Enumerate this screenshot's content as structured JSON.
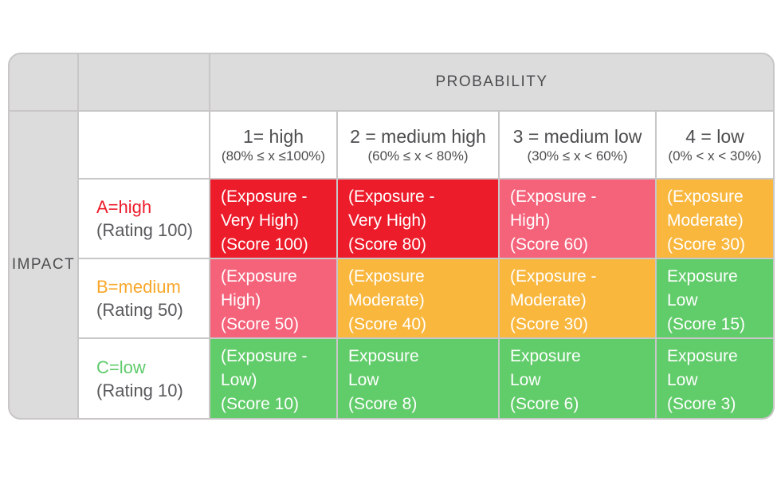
{
  "palette": {
    "red": "#ed1c2b",
    "pink": "#f5637b",
    "orange": "#f9b73e",
    "green": "#61cc6a",
    "header_gray": "#dddcdd",
    "grid_line": "#c8c6c7",
    "dark_text": "#4d4d4f",
    "rating_text": "#58595b",
    "label_red": "#ed1c2b",
    "label_orange": "#f9a72b",
    "label_green": "#5fcb6b",
    "cell_text": "#ffffff"
  },
  "matrix": {
    "probability_label": "PROBABILITY",
    "impact_label": "IMPACT",
    "columns": [
      {
        "label": "1= high",
        "range": "(80% ≤ x ≤100%)"
      },
      {
        "label": "2 = medium high",
        "range": "(60% ≤ x < 80%)"
      },
      {
        "label": "3 = medium low",
        "range": "(30% ≤ x < 60%)"
      },
      {
        "label": "4 = low",
        "range": "(0% < x < 30%)"
      }
    ],
    "rows": [
      {
        "label": "A=high",
        "rating": "(Rating 100)",
        "cells": [
          {
            "color": "red",
            "lines": [
              "(Exposure -",
              "Very High)",
              "(Score 100)"
            ]
          },
          {
            "color": "red",
            "lines": [
              "(Exposure -",
              "Very High)",
              "(Score 80)"
            ]
          },
          {
            "color": "pink",
            "lines": [
              "(Exposure -",
              "High)",
              "(Score 60)"
            ]
          },
          {
            "color": "orange",
            "lines": [
              "(Exposure",
              "Moderate)",
              "(Score 30)"
            ]
          }
        ]
      },
      {
        "label": "B=medium",
        "rating": "(Rating 50)",
        "cells": [
          {
            "color": "pink",
            "lines": [
              "(Exposure",
              "High)",
              "(Score 50)"
            ]
          },
          {
            "color": "orange",
            "lines": [
              "(Exposure",
              "Moderate)",
              "(Score 40)"
            ]
          },
          {
            "color": "orange",
            "lines": [
              "(Exposure -",
              "Moderate)",
              "(Score 30)"
            ]
          },
          {
            "color": "green",
            "lines": [
              "Exposure",
              "Low",
              "(Score 15)"
            ]
          }
        ]
      },
      {
        "label": "C=low",
        "rating": "(Rating 10)",
        "cells": [
          {
            "color": "green",
            "lines": [
              "(Exposure -",
              "Low)",
              "(Score 10)"
            ]
          },
          {
            "color": "green",
            "lines": [
              "Exposure",
              "Low",
              "(Score 8)"
            ]
          },
          {
            "color": "green",
            "lines": [
              "Exposure",
              "Low",
              "(Score 6)"
            ]
          },
          {
            "color": "green",
            "lines": [
              "Exposure",
              "Low",
              "(Score 3)"
            ]
          }
        ]
      }
    ]
  }
}
